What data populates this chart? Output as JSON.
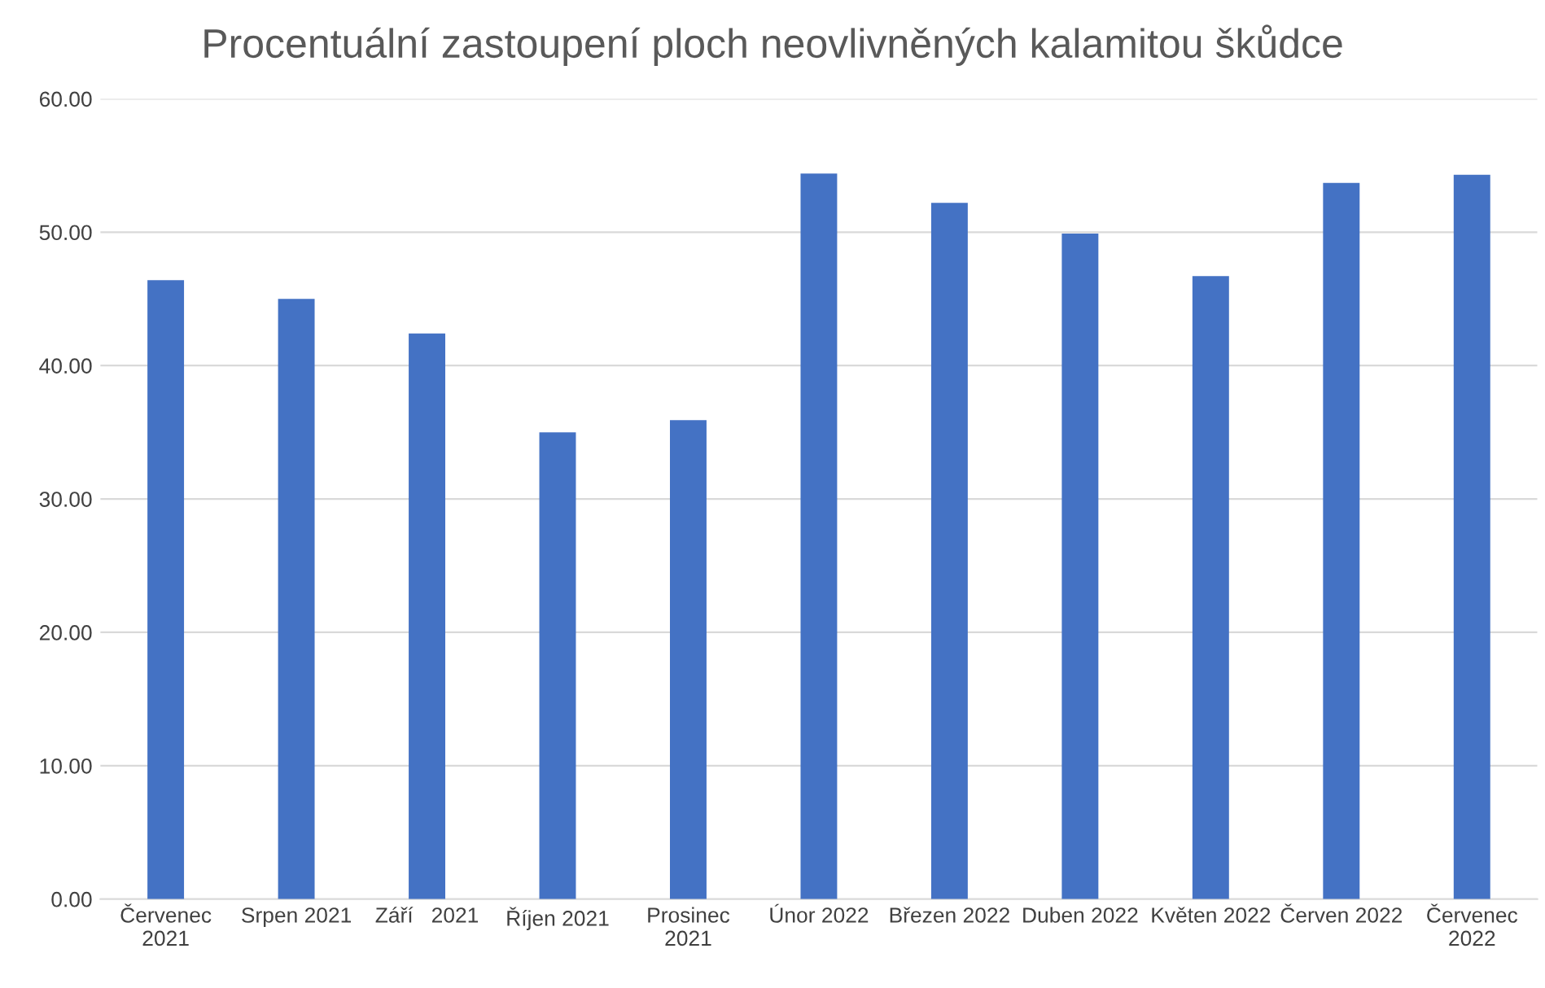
{
  "chart_data": {
    "type": "bar",
    "title": "Procentuální zastoupení ploch neovlivněných kalamitou škůdce",
    "categories": [
      "Červenec 2021",
      "Srpen 2021",
      "Září   2021",
      "Říjen 2021",
      "Prosinec 2021",
      "Únor 2022",
      "Březen 2022",
      "Duben 2022",
      "Květen 2022",
      "Červen 2022",
      "Červenec 2022"
    ],
    "values": [
      46.4,
      45.0,
      42.4,
      35.0,
      35.9,
      54.4,
      52.2,
      49.9,
      46.7,
      53.7,
      54.3
    ],
    "color": "#4472c4",
    "ylim": [
      0,
      60
    ],
    "yticks": [
      {
        "value": 0,
        "label": "0.00"
      },
      {
        "value": 10,
        "label": "10.00"
      },
      {
        "value": 20,
        "label": "20.00"
      },
      {
        "value": 30,
        "label": "30.00"
      },
      {
        "value": 40,
        "label": "40.00"
      },
      {
        "value": 50,
        "label": "50.00"
      },
      {
        "value": 60,
        "label": "60.00"
      }
    ],
    "grid": "y"
  }
}
